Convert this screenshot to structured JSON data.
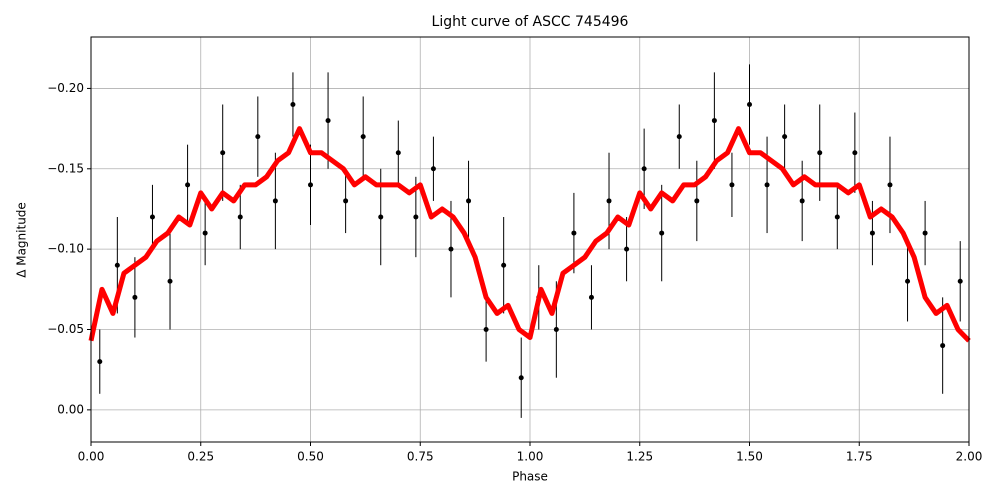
{
  "chart_data": {
    "type": "scatter",
    "title": "Light curve of ASCC 745496",
    "x_label": "Phase",
    "y_label": "Δ Magnitude",
    "xlim": [
      0,
      2
    ],
    "ylim": [
      0.02,
      -0.232
    ],
    "xticks": [
      {
        "value": 0,
        "label": "0.00"
      },
      {
        "value": 0.25,
        "label": "0.25"
      },
      {
        "value": 0.5,
        "label": "0.50"
      },
      {
        "value": 0.75,
        "label": "0.75"
      },
      {
        "value": 1,
        "label": "1.00"
      },
      {
        "value": 1.25,
        "label": "1.25"
      },
      {
        "value": 1.5,
        "label": "1.50"
      },
      {
        "value": 1.75,
        "label": "1.75"
      },
      {
        "value": 2,
        "label": "2.00"
      }
    ],
    "yticks": [
      {
        "value": -0.2,
        "label": "−0.20"
      },
      {
        "value": -0.15,
        "label": "−0.15"
      },
      {
        "value": -0.1,
        "label": "−0.10"
      },
      {
        "value": -0.05,
        "label": "−0.05"
      },
      {
        "value": 0,
        "label": "0.00"
      }
    ],
    "grid": true,
    "series": [
      {
        "type": "errorbar",
        "color": "#000000",
        "x": [
          0.02,
          0.06,
          0.1,
          0.14,
          0.18,
          0.22,
          0.26,
          0.3,
          0.34,
          0.38,
          0.42,
          0.46,
          0.5,
          0.54,
          0.58,
          0.62,
          0.66,
          0.7,
          0.74,
          0.78,
          0.82,
          0.86,
          0.9,
          0.94,
          0.98,
          1.02,
          1.06,
          1.1,
          1.14,
          1.18,
          1.22,
          1.26,
          1.3,
          1.34,
          1.38,
          1.42,
          1.46,
          1.5,
          1.54,
          1.58,
          1.62,
          1.66,
          1.7,
          1.74,
          1.78,
          1.82,
          1.86,
          1.9,
          1.94,
          1.98
        ],
        "values": [
          -0.03,
          -0.09,
          -0.07,
          -0.12,
          -0.08,
          -0.14,
          -0.11,
          -0.16,
          -0.12,
          -0.17,
          -0.13,
          -0.19,
          -0.14,
          -0.18,
          -0.13,
          -0.17,
          -0.12,
          -0.16,
          -0.12,
          -0.15,
          -0.1,
          -0.13,
          -0.05,
          -0.09,
          -0.02,
          -0.07,
          -0.05,
          -0.11,
          -0.07,
          -0.13,
          -0.1,
          -0.15,
          -0.11,
          -0.17,
          -0.13,
          -0.18,
          -0.14,
          -0.19,
          -0.14,
          -0.17,
          -0.13,
          -0.16,
          -0.12,
          -0.16,
          -0.11,
          -0.14,
          -0.08,
          -0.11,
          -0.04,
          -0.08
        ],
        "errors": [
          0.02,
          0.03,
          0.025,
          0.02,
          0.03,
          0.025,
          0.02,
          0.03,
          0.02,
          0.025,
          0.03,
          0.02,
          0.025,
          0.03,
          0.02,
          0.025,
          0.03,
          0.02,
          0.025,
          0.02,
          0.03,
          0.025,
          0.02,
          0.03,
          0.025,
          0.02,
          0.03,
          0.025,
          0.02,
          0.03,
          0.02,
          0.025,
          0.03,
          0.02,
          0.025,
          0.03,
          0.02,
          0.025,
          0.03,
          0.02,
          0.025,
          0.03,
          0.02,
          0.025,
          0.02,
          0.03,
          0.025,
          0.02,
          0.03,
          0.025
        ]
      },
      {
        "type": "line",
        "color": "#ff0000",
        "x": [
          0,
          0.025,
          0.05,
          0.075,
          0.1,
          0.125,
          0.15,
          0.175,
          0.2,
          0.225,
          0.25,
          0.275,
          0.3,
          0.325,
          0.35,
          0.375,
          0.4,
          0.425,
          0.45,
          0.475,
          0.5,
          0.525,
          0.55,
          0.575,
          0.6,
          0.625,
          0.65,
          0.675,
          0.7,
          0.725,
          0.75,
          0.775,
          0.8,
          0.825,
          0.85,
          0.875,
          0.9,
          0.925,
          0.95,
          0.975,
          1,
          1.025,
          1.05,
          1.075,
          1.1,
          1.125,
          1.15,
          1.175,
          1.2,
          1.225,
          1.25,
          1.275,
          1.3,
          1.325,
          1.35,
          1.375,
          1.4,
          1.425,
          1.45,
          1.475,
          1.5,
          1.525,
          1.55,
          1.575,
          1.6,
          1.625,
          1.65,
          1.675,
          1.7,
          1.725,
          1.75,
          1.775,
          1.8,
          1.825,
          1.85,
          1.875,
          1.9,
          1.925,
          1.95,
          1.975,
          2
        ],
        "values": [
          -0.043,
          -0.075,
          -0.06,
          -0.085,
          -0.09,
          -0.095,
          -0.105,
          -0.11,
          -0.12,
          -0.115,
          -0.135,
          -0.125,
          -0.135,
          -0.13,
          -0.14,
          -0.14,
          -0.145,
          -0.155,
          -0.16,
          -0.175,
          -0.16,
          -0.16,
          -0.155,
          -0.15,
          -0.14,
          -0.145,
          -0.14,
          -0.14,
          -0.14,
          -0.135,
          -0.14,
          -0.12,
          -0.125,
          -0.12,
          -0.11,
          -0.095,
          -0.07,
          -0.06,
          -0.065,
          -0.05,
          -0.045,
          -0.075,
          -0.06,
          -0.085,
          -0.09,
          -0.095,
          -0.105,
          -0.11,
          -0.12,
          -0.115,
          -0.135,
          -0.125,
          -0.135,
          -0.13,
          -0.14,
          -0.14,
          -0.145,
          -0.155,
          -0.16,
          -0.175,
          -0.16,
          -0.16,
          -0.155,
          -0.15,
          -0.14,
          -0.145,
          -0.14,
          -0.14,
          -0.14,
          -0.135,
          -0.14,
          -0.12,
          -0.125,
          -0.12,
          -0.11,
          -0.095,
          -0.07,
          -0.06,
          -0.065,
          -0.05,
          -0.043
        ]
      }
    ]
  }
}
